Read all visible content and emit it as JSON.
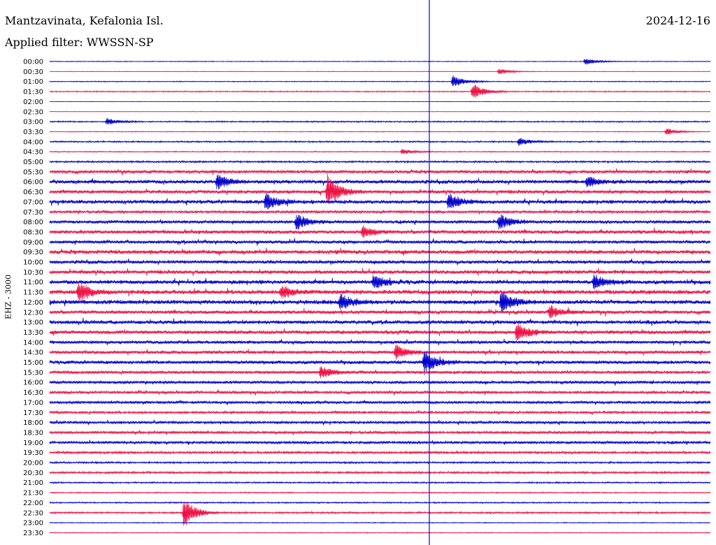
{
  "header": {
    "station": "Mantzavinata, Kefalonia Isl.",
    "date": "2024-12-16",
    "filter": "Applied filter: WWSSN-SP",
    "channel": "EHZ - 3000"
  },
  "chart_data": {
    "type": "line",
    "title": "",
    "xlabel": "",
    "ylabel": "EHZ - 3000",
    "colors": {
      "odd": "#0000cc",
      "even": "#ee1144",
      "marker": "#0000ff"
    },
    "trace_labels": [
      "00:00",
      "00:30",
      "01:00",
      "01:30",
      "02:00",
      "02:30",
      "03:00",
      "03:30",
      "04:00",
      "04:30",
      "05:00",
      "05:30",
      "06:00",
      "06:30",
      "07:00",
      "07:30",
      "08:00",
      "08:30",
      "09:00",
      "09:30",
      "10:00",
      "10:30",
      "11:00",
      "11:30",
      "12:00",
      "12:30",
      "13:00",
      "13:30",
      "14:00",
      "14:30",
      "15:00",
      "15:30",
      "16:00",
      "16:30",
      "17:00",
      "17:30",
      "18:00",
      "18:30",
      "19:00",
      "19:30",
      "20:00",
      "20:30",
      "21:00",
      "21:30",
      "22:00",
      "22:30",
      "23:00",
      "23:30"
    ],
    "noise_level": [
      0.5,
      0.4,
      0.6,
      0.8,
      0.3,
      0.3,
      0.9,
      0.5,
      1.0,
      0.7,
      1.2,
      2.2,
      2.6,
      2.4,
      2.6,
      1.8,
      2.2,
      2.6,
      2.2,
      2.8,
      2.4,
      2.6,
      2.8,
      3.0,
      3.0,
      2.4,
      2.6,
      2.6,
      2.2,
      2.2,
      2.4,
      2.0,
      2.0,
      1.8,
      1.8,
      1.6,
      1.8,
      1.8,
      1.8,
      1.6,
      1.2,
      1.4,
      1.0,
      0.8,
      0.9,
      1.2,
      0.6,
      0.6
    ],
    "events": [
      {
        "trace": "00:00",
        "minute": 24.3,
        "amplitude": 5
      },
      {
        "trace": "00:30",
        "minute": 20.4,
        "amplitude": 4
      },
      {
        "trace": "01:00",
        "minute": 18.3,
        "amplitude": 9
      },
      {
        "trace": "01:30",
        "minute": 19.2,
        "amplitude": 12
      },
      {
        "trace": "03:00",
        "minute": 2.6,
        "amplitude": 5
      },
      {
        "trace": "03:30",
        "minute": 28.0,
        "amplitude": 5
      },
      {
        "trace": "04:00",
        "minute": 21.3,
        "amplitude": 5
      },
      {
        "trace": "04:30",
        "minute": 16.0,
        "amplitude": 4
      },
      {
        "trace": "06:00",
        "minute": 7.6,
        "amplitude": 11
      },
      {
        "trace": "06:00",
        "minute": 24.4,
        "amplitude": 8
      },
      {
        "trace": "06:30",
        "minute": 12.6,
        "amplitude": 25
      },
      {
        "trace": "07:00",
        "minute": 9.8,
        "amplitude": 12
      },
      {
        "trace": "07:00",
        "minute": 18.1,
        "amplitude": 12
      },
      {
        "trace": "08:00",
        "minute": 11.2,
        "amplitude": 11
      },
      {
        "trace": "08:00",
        "minute": 20.4,
        "amplitude": 12
      },
      {
        "trace": "08:30",
        "minute": 14.2,
        "amplitude": 8
      },
      {
        "trace": "11:00",
        "minute": 14.7,
        "amplitude": 10
      },
      {
        "trace": "11:00",
        "minute": 24.7,
        "amplitude": 10
      },
      {
        "trace": "11:30",
        "minute": 1.3,
        "amplitude": 15
      },
      {
        "trace": "11:30",
        "minute": 10.5,
        "amplitude": 9
      },
      {
        "trace": "12:00",
        "minute": 13.2,
        "amplitude": 12
      },
      {
        "trace": "12:00",
        "minute": 20.5,
        "amplitude": 16
      },
      {
        "trace": "12:30",
        "minute": 22.7,
        "amplitude": 10
      },
      {
        "trace": "13:30",
        "minute": 21.2,
        "amplitude": 14
      },
      {
        "trace": "14:30",
        "minute": 15.7,
        "amplitude": 11
      },
      {
        "trace": "15:00",
        "minute": 17.0,
        "amplitude": 18
      },
      {
        "trace": "15:30",
        "minute": 12.3,
        "amplitude": 9
      },
      {
        "trace": "22:30",
        "minute": 6.1,
        "amplitude": 22
      }
    ]
  }
}
